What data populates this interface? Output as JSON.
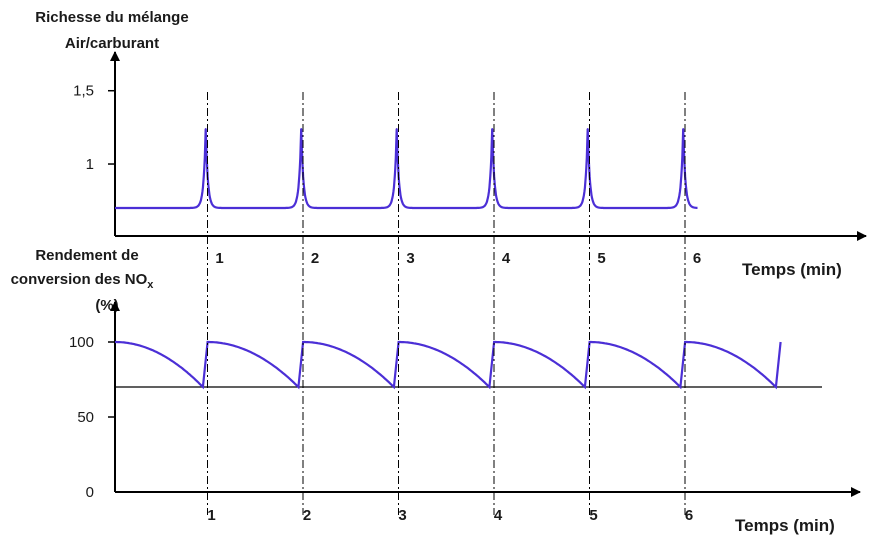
{
  "chart_data": [
    {
      "type": "line",
      "ylabel_lines": [
        "Richesse du mélange",
        "Air/carburant"
      ],
      "xlabel": "Temps (min)",
      "yticks": [
        {
          "value": 1,
          "label": "1"
        },
        {
          "value": 1.5,
          "label": "1,5"
        }
      ],
      "xticks": [
        {
          "value": 1,
          "label": "1"
        },
        {
          "value": 2,
          "label": "2"
        },
        {
          "value": 3,
          "label": "3"
        },
        {
          "value": 4,
          "label": "4"
        },
        {
          "value": 5,
          "label": "5"
        },
        {
          "value": 6,
          "label": "6"
        }
      ],
      "ylim": [
        0.55,
        1.65
      ],
      "series": [
        {
          "color": "#4b2fd6",
          "baseline": 0.7,
          "peak": 1.24,
          "peak_times": [
            0.95,
            1.95,
            2.95,
            3.95,
            4.95,
            5.95
          ],
          "x_end": 6.1,
          "x": [
            0,
            0.85,
            0.95,
            1.05,
            1.85,
            1.95,
            2.05,
            2.85,
            2.95,
            3.05,
            3.85,
            3.95,
            4.05,
            4.85,
            4.95,
            5.05,
            5.85,
            5.95,
            6.05,
            6.1
          ],
          "y": [
            0.7,
            0.7,
            1.24,
            0.7,
            0.7,
            1.24,
            0.7,
            0.7,
            1.24,
            0.7,
            0.7,
            1.24,
            0.7,
            0.7,
            1.24,
            0.7,
            0.7,
            1.24,
            0.7,
            0.7
          ]
        }
      ]
    },
    {
      "type": "line",
      "ylabel_lines": [
        "Rendement de",
        "conversion des NOx",
        "(%)"
      ],
      "xlabel": "Temps (min)",
      "yticks": [
        {
          "value": 0,
          "label": "0"
        },
        {
          "value": 50,
          "label": "50"
        },
        {
          "value": 100,
          "label": "100"
        }
      ],
      "xticks": [
        {
          "value": 1,
          "label": "1"
        },
        {
          "value": 2,
          "label": "2"
        },
        {
          "value": 3,
          "label": "3"
        },
        {
          "value": 4,
          "label": "4"
        },
        {
          "value": 5,
          "label": "5"
        },
        {
          "value": 6,
          "label": "6"
        }
      ],
      "ylim": [
        0,
        110
      ],
      "reference_line": {
        "value": 70,
        "color": "#000000"
      },
      "series": [
        {
          "color": "#4b2fd6",
          "max": 100,
          "min": 70,
          "drop_times": [
            0.92,
            1.92,
            2.92,
            3.92,
            4.92,
            5.92,
            6.92
          ],
          "x_end": 7.0,
          "x": [
            0,
            0.92,
            0.97,
            1.92,
            1.97,
            2.92,
            2.97,
            3.92,
            3.97,
            4.92,
            4.97,
            5.92,
            5.97,
            6.92,
            7.0
          ],
          "y": [
            100,
            70,
            100,
            70,
            100,
            70,
            100,
            70,
            100,
            70,
            100,
            70,
            100,
            70,
            100
          ]
        }
      ]
    }
  ]
}
